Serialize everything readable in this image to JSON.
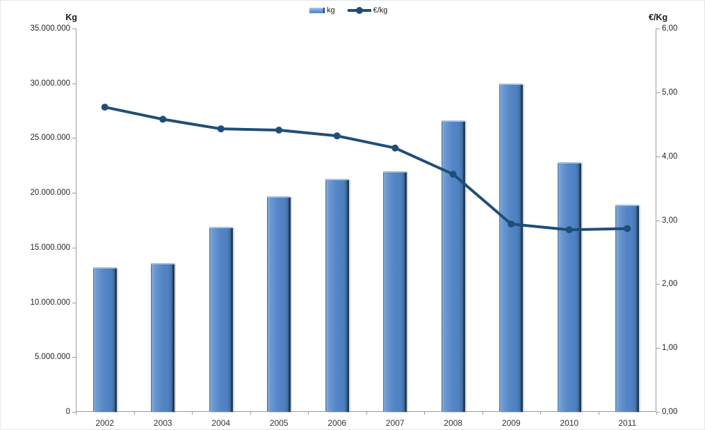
{
  "chart_data": {
    "type": "combo-bar-line",
    "title": "",
    "categories": [
      "2002",
      "2003",
      "2004",
      "2005",
      "2006",
      "2007",
      "2008",
      "2009",
      "2010",
      "2011"
    ],
    "series": [
      {
        "name": "kg",
        "type": "bar",
        "axis": "left",
        "values": [
          13200000,
          13600000,
          16900000,
          19700000,
          21300000,
          22000000,
          26600000,
          30000000,
          22800000,
          18900000
        ]
      },
      {
        "name": "€/kg",
        "type": "line",
        "axis": "right",
        "values": [
          4.77,
          4.58,
          4.43,
          4.41,
          4.32,
          4.13,
          3.72,
          2.94,
          2.85,
          2.87
        ]
      }
    ],
    "left_axis": {
      "title": "Kg",
      "min": 0,
      "max": 35000000,
      "step": 5000000,
      "tick_labels": [
        "0",
        "5.000.000",
        "10.000.000",
        "15.000.000",
        "20.000.000",
        "25.000.000",
        "30.000.000",
        "35.000.000"
      ]
    },
    "right_axis": {
      "title": "€/Kg",
      "min": 0,
      "max": 6,
      "step": 1,
      "tick_labels": [
        "0,00",
        "1,00",
        "2,00",
        "3,00",
        "4,00",
        "5,00",
        "6,00"
      ]
    },
    "legend": {
      "position": "top-center",
      "items": [
        {
          "label": "kg",
          "swatch": "bar"
        },
        {
          "label": "€/kg",
          "swatch": "line-marker"
        }
      ]
    },
    "colors": {
      "bar_fill": "#5586C6",
      "bar_edge_dark": "#1F3B5C",
      "bar_highlight": "#8FB2DC",
      "line": "#1F4E79",
      "axis_line": "#9C9C9C",
      "text": "#262626"
    },
    "grid": "off"
  }
}
